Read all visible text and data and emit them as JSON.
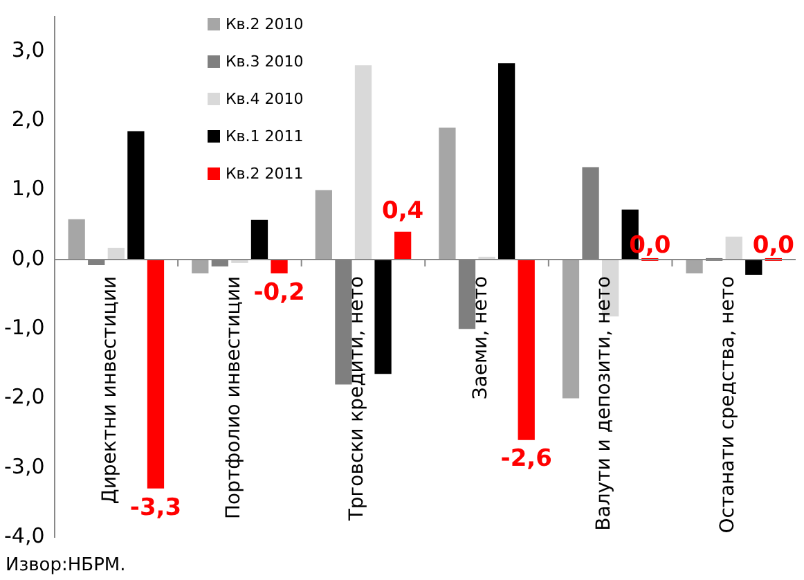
{
  "chart_data": {
    "type": "bar",
    "categories": [
      "Директни инвестиции",
      "Портфолио инвестиции",
      "Трговски кредити, нето",
      "Заеми, нето",
      "Валути и депозити, нето",
      "Останати средства, нето"
    ],
    "series": [
      {
        "name": "Кв.2 2010",
        "color": "#a6a6a6",
        "values": [
          0.58,
          -0.2,
          1.0,
          1.9,
          -2.0,
          -0.2
        ]
      },
      {
        "name": "Кв.3 2010",
        "color": "#7f7f7f",
        "values": [
          -0.08,
          -0.1,
          -1.8,
          -1.0,
          1.33,
          0.0
        ]
      },
      {
        "name": "Кв.4 2010",
        "color": "#d9d9d9",
        "values": [
          0.17,
          -0.05,
          2.8,
          0.02,
          -0.82,
          0.33
        ]
      },
      {
        "name": "Кв.1 2011",
        "color": "#000000",
        "values": [
          1.85,
          0.57,
          -1.65,
          2.83,
          0.72,
          -0.22
        ]
      },
      {
        "name": "Кв.2 2011",
        "color": "#ff0000",
        "values": [
          -3.3,
          -0.2,
          0.4,
          -2.6,
          0.0,
          0.0
        ],
        "value_labels": [
          "-3,3",
          "-0,2",
          "0,4",
          "-2,6",
          "0,0",
          "0,0"
        ]
      }
    ],
    "ylim": [
      -4,
      3.5
    ],
    "yticks": [
      {
        "value": -4,
        "label": "-4,0"
      },
      {
        "value": -3,
        "label": "-3,0"
      },
      {
        "value": -2,
        "label": "-2,0"
      },
      {
        "value": -1,
        "label": "-1,0"
      },
      {
        "value": 0,
        "label": "0,0"
      },
      {
        "value": 1,
        "label": "1,0"
      },
      {
        "value": 2,
        "label": "2,0"
      },
      {
        "value": 3,
        "label": "3,0"
      }
    ],
    "grid": false,
    "legend": "top",
    "annotations": [
      "Извор:НБРМ."
    ]
  }
}
